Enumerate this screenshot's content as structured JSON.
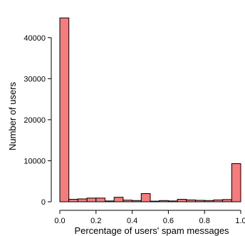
{
  "chart_data": {
    "type": "bar",
    "title": "",
    "xlabel": "Percentage of users' spam messages",
    "ylabel": "Number of users",
    "xlim": [
      0.0,
      1.0
    ],
    "ylim": [
      0,
      45000
    ],
    "x_ticks": [
      0.0,
      0.2,
      0.4,
      0.6,
      0.8,
      1.0
    ],
    "x_tick_labels": [
      "0.0",
      "0.2",
      "0.4",
      "0.6",
      "0.8",
      "1.0"
    ],
    "y_ticks": [
      0,
      10000,
      20000,
      30000,
      40000
    ],
    "y_tick_labels": [
      "0",
      "10000",
      "20000",
      "30000",
      "40000"
    ],
    "bin_width": 0.05,
    "bin_starts": [
      0.0,
      0.05,
      0.1,
      0.15,
      0.2,
      0.25,
      0.3,
      0.35,
      0.4,
      0.45,
      0.5,
      0.55,
      0.6,
      0.65,
      0.7,
      0.75,
      0.8,
      0.85,
      0.9,
      0.95
    ],
    "values": [
      44800,
      600,
      700,
      900,
      900,
      200,
      1100,
      400,
      300,
      2000,
      150,
      300,
      200,
      600,
      450,
      350,
      300,
      450,
      550,
      9300
    ],
    "grid": false,
    "bar_color": "#f47c7c",
    "edge_color": "#000000"
  }
}
